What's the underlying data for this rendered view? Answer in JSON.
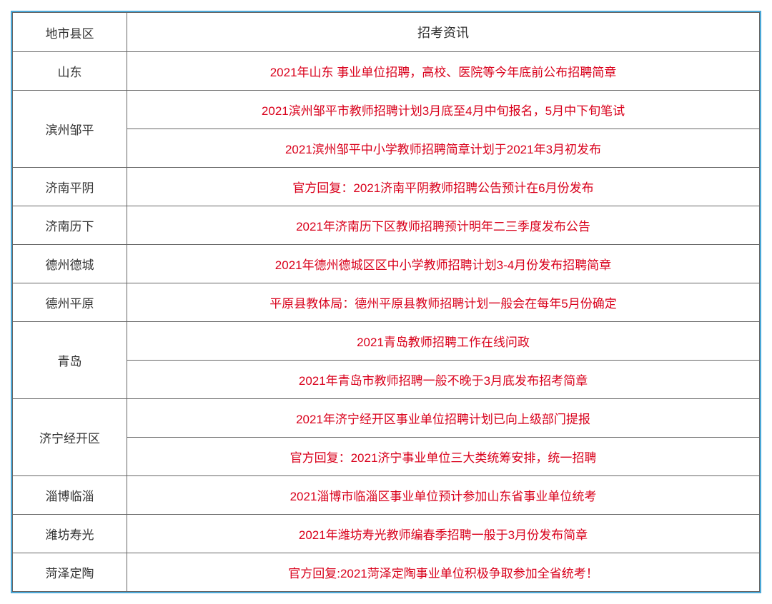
{
  "table": {
    "headers": {
      "region": "地市县区",
      "info": "招考资讯"
    },
    "rows": [
      {
        "region": "山东",
        "info_items": [
          "2021年山东 事业单位招聘，高校、医院等今年底前公布招聘简章"
        ]
      },
      {
        "region": "滨州邹平",
        "info_items": [
          "2021滨州邹平市教师招聘计划3月底至4月中旬报名，5月中下旬笔试",
          "2021滨州邹平中小学教师招聘简章计划于2021年3月初发布"
        ]
      },
      {
        "region": "济南平阴",
        "info_items": [
          "官方回复：2021济南平阴教师招聘公告预计在6月份发布"
        ]
      },
      {
        "region": "济南历下",
        "info_items": [
          "2021年济南历下区教师招聘预计明年二三季度发布公告"
        ]
      },
      {
        "region": "德州德城",
        "info_items": [
          "2021年德州德城区区中小学教师招聘计划3-4月份发布招聘简章"
        ]
      },
      {
        "region": "德州平原",
        "info_items": [
          "平原县教体局：德州平原县教师招聘计划一般会在每年5月份确定"
        ]
      },
      {
        "region": "青岛",
        "info_items": [
          "2021青岛教师招聘工作在线问政",
          "2021年青岛市教师招聘一般不晚于3月底发布招考简章"
        ]
      },
      {
        "region": "济宁经开区",
        "info_items": [
          "2021年济宁经开区事业单位招聘计划已向上级部门提报",
          "官方回复：2021济宁事业单位三大类统筹安排，统一招聘"
        ]
      },
      {
        "region": "淄博临淄",
        "info_items": [
          "2021淄博市临淄区事业单位预计参加山东省事业单位统考"
        ]
      },
      {
        "region": "潍坊寿光",
        "info_items": [
          "2021年潍坊寿光教师编春季招聘一般于3月份发布简章"
        ]
      },
      {
        "region": "菏泽定陶",
        "info_items": [
          "官方回复:2021菏泽定陶事业单位积极争取参加全省统考！"
        ]
      }
    ]
  },
  "colors": {
    "border_outer": "#4ba8d8",
    "border_inner": "#666666",
    "header_text": "#333333",
    "region_text": "#333333",
    "info_text": "#d9001b",
    "background": "#ffffff"
  },
  "layout": {
    "region_col_width": 160,
    "cell_padding": 14,
    "font_size_header": 18,
    "font_size_body": 17
  }
}
